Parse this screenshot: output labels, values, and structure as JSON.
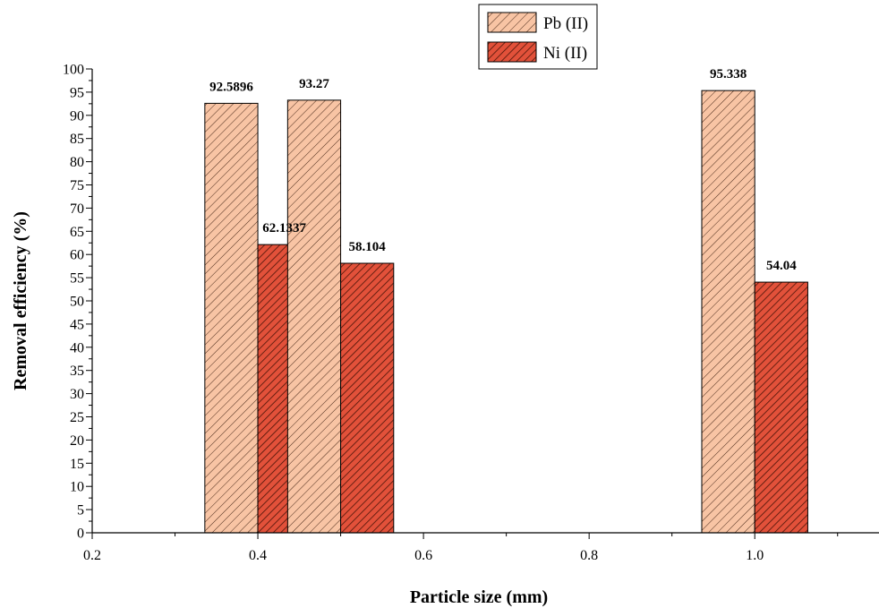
{
  "chart_data": {
    "type": "bar",
    "xlabel": "Particle size (mm)",
    "ylabel": "Removal efficiency (%)",
    "xlim": [
      0.2,
      1.15
    ],
    "ylim": [
      0,
      100
    ],
    "x_ticks": [
      "0.2",
      "0.4",
      "0.6",
      "0.8",
      "1.0"
    ],
    "y_ticks": [
      "0",
      "5",
      "10",
      "15",
      "20",
      "25",
      "30",
      "35",
      "40",
      "45",
      "50",
      "55",
      "60",
      "65",
      "70",
      "75",
      "80",
      "85",
      "90",
      "95",
      "100"
    ],
    "x": [
      0.4,
      0.5,
      1.0
    ],
    "legend_position": "top-center",
    "grid": false,
    "series": [
      {
        "name": "Pb (II)",
        "color": "#f8c4a4",
        "hatch_color": "#4a2a1a",
        "values": [
          92.5896,
          93.27,
          95.338
        ],
        "labels": [
          "92.5896",
          "93.27",
          "95.338"
        ]
      },
      {
        "name": "Ni (II)",
        "color": "#e2513a",
        "hatch_color": "#4a1408",
        "values": [
          62.1337,
          58.104,
          54.04
        ],
        "labels": [
          "62.1337",
          "58.104",
          "54.04"
        ]
      }
    ]
  }
}
